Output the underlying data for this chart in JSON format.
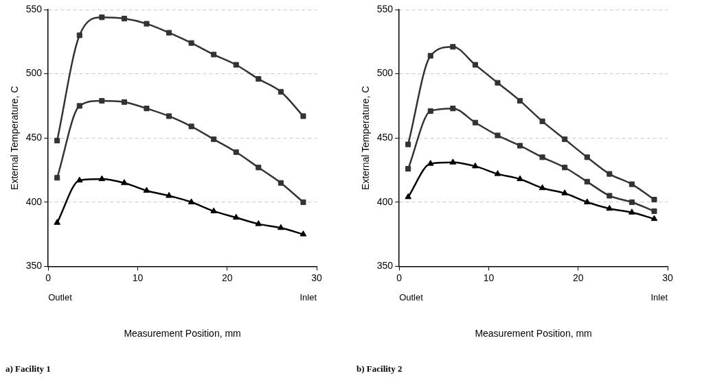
{
  "chart_data": [
    {
      "type": "line",
      "xlabel": "Measurement Position, mm",
      "ylabel": "External Temperature, C",
      "annotations": [
        "Outlet",
        "Inlet",
        "a) Facility 1"
      ],
      "x": [
        1,
        3.5,
        6,
        8.5,
        11,
        13.5,
        16,
        18.5,
        21,
        23.5,
        26,
        28.5
      ],
      "series": [
        {
          "color": "#333333",
          "marker": "square",
          "values": [
            448,
            530,
            544,
            543,
            539,
            532,
            524,
            515,
            507,
            496,
            486,
            467
          ]
        },
        {
          "color": "#333333",
          "marker": "square",
          "values": [
            419,
            475,
            479,
            478,
            473,
            467,
            459,
            449,
            439,
            427,
            415,
            400
          ]
        },
        {
          "color": "#000000",
          "marker": "triangle",
          "values": [
            384,
            417,
            418,
            415,
            409,
            405,
            400,
            393,
            388,
            383,
            380,
            375
          ]
        }
      ],
      "xlim": [
        0,
        30
      ],
      "xticks": [
        0,
        10,
        20,
        30
      ],
      "ylim": [
        350,
        550
      ],
      "yticks": [
        350,
        400,
        450,
        500,
        550
      ],
      "grid": "y",
      "legend": false
    },
    {
      "type": "line",
      "xlabel": "Measurement Position, mm",
      "ylabel": "External Temperature, C",
      "annotations": [
        "Outlet",
        "Inlet",
        "b) Facility 2"
      ],
      "x": [
        1,
        3.5,
        6,
        8.5,
        11,
        13.5,
        16,
        18.5,
        21,
        23.5,
        26,
        28.5
      ],
      "series": [
        {
          "color": "#333333",
          "marker": "square",
          "values": [
            445,
            514,
            521,
            507,
            493,
            479,
            463,
            449,
            435,
            422,
            414,
            402
          ]
        },
        {
          "color": "#333333",
          "marker": "square",
          "values": [
            426,
            471,
            473,
            462,
            452,
            444,
            435,
            427,
            416,
            405,
            400,
            393
          ]
        },
        {
          "color": "#000000",
          "marker": "triangle",
          "values": [
            404,
            430,
            431,
            428,
            422,
            418,
            411,
            407,
            400,
            395,
            392,
            387
          ]
        }
      ],
      "xlim": [
        0,
        30
      ],
      "xticks": [
        0,
        10,
        20,
        30
      ],
      "ylim": [
        350,
        550
      ],
      "yticks": [
        350,
        400,
        450,
        500,
        550
      ],
      "grid": "y",
      "legend": false
    }
  ]
}
